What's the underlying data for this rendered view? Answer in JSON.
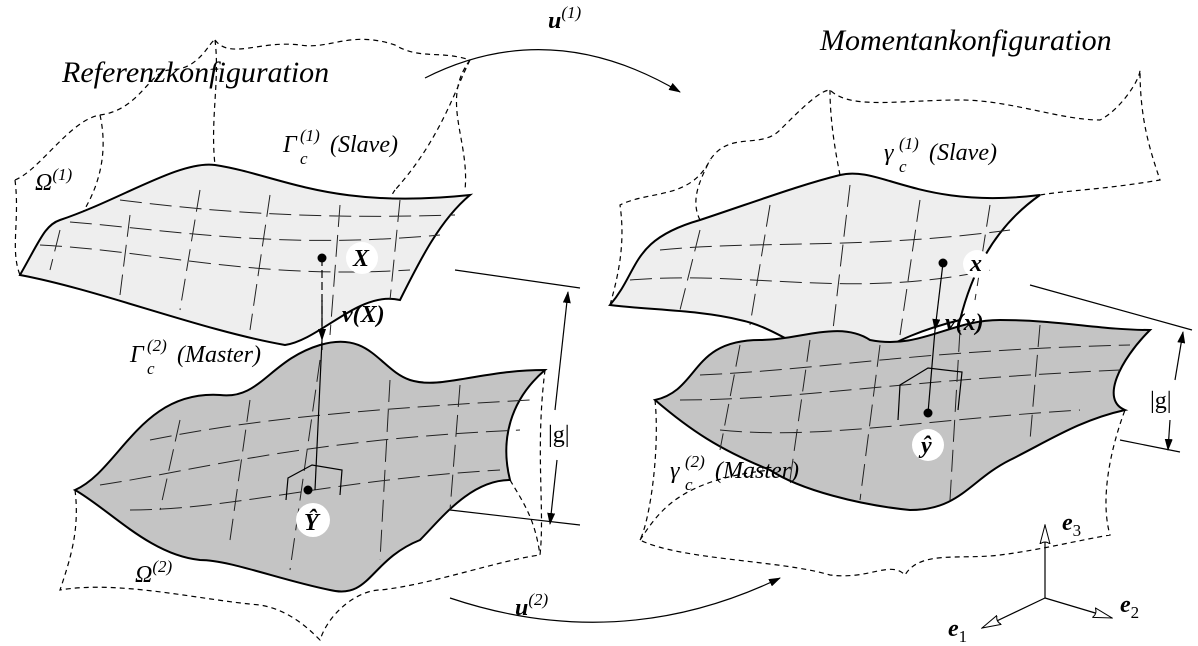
{
  "titles": {
    "reference": "Referenzkonfiguration",
    "current": "Momentankonfiguration"
  },
  "mappings": [
    {
      "symbol": "u",
      "superscript": "(1)"
    },
    {
      "symbol": "u",
      "superscript": "(2)"
    }
  ],
  "domains": [
    {
      "symbol": "Ω",
      "superscript": "(1)"
    },
    {
      "symbol": "Ω",
      "superscript": "(2)"
    }
  ],
  "surfaces": [
    {
      "symbol": "Γ",
      "subscript": "c",
      "superscript": "(1)",
      "role": "(Slave)"
    },
    {
      "symbol": "Γ",
      "subscript": "c",
      "superscript": "(2)",
      "role": "(Master)"
    },
    {
      "symbol": "γ",
      "subscript": "c",
      "superscript": "(1)",
      "role": "(Slave)"
    },
    {
      "symbol": "γ",
      "subscript": "c",
      "superscript": "(2)",
      "role": "(Master)"
    }
  ],
  "points": [
    "X",
    "x",
    "Ŷ",
    "ŷ"
  ],
  "normals": [
    {
      "symbol": "v",
      "argument": "(X)"
    },
    {
      "symbol": "v",
      "argument": "(x)"
    }
  ],
  "gaps": [
    "|g|",
    "|g|"
  ],
  "basis": [
    {
      "symbol": "e",
      "subscript": "1"
    },
    {
      "symbol": "e",
      "subscript": "2"
    },
    {
      "symbol": "e",
      "subscript": "3"
    }
  ]
}
